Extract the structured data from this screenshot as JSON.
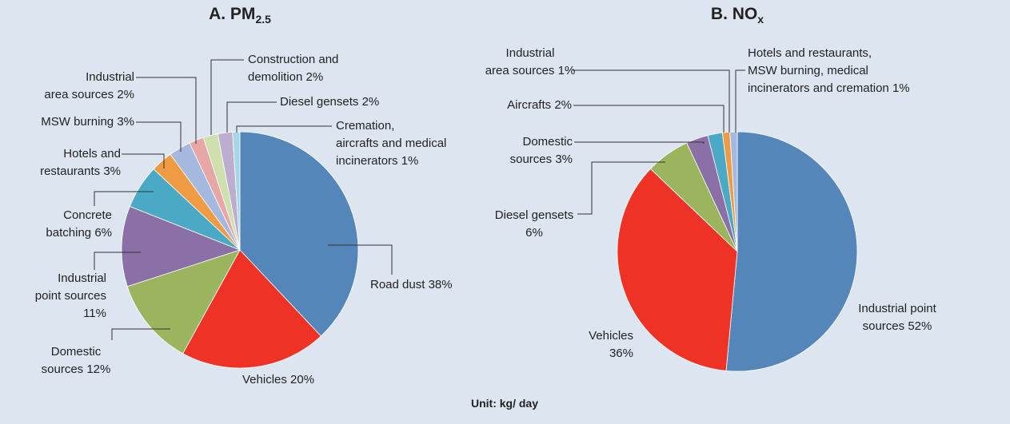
{
  "chart_data": [
    {
      "type": "pie",
      "title": "A. PM",
      "title_subscript": "2.5",
      "categories": [
        "Road dust",
        "Vehicles",
        "Domestic\nsources",
        "Industrial\npoint sources",
        "Concrete\nbatching",
        "Hotels and\nrestaurants",
        "MSW burning",
        "Industrial\narea sources",
        "Construction and\ndemolition",
        "Diesel gensets",
        "Cremation,\naircrafts and medical\nincinerators"
      ],
      "values": [
        38,
        20,
        12,
        11,
        6,
        3,
        3,
        2,
        2,
        2,
        1
      ],
      "value_labels": [
        "38%",
        "20%",
        "12%",
        "11%",
        "6%",
        "3%",
        "3%",
        "2%",
        "2%",
        "2%",
        "1%"
      ],
      "colors": [
        "#5586ba",
        "#ee3326",
        "#9bb45e",
        "#8a70a6",
        "#4aa9c4",
        "#ef9b43",
        "#a5b9df",
        "#e7a7a7",
        "#cfdfae",
        "#bdaecf",
        "#a9d6e6"
      ]
    },
    {
      "type": "pie",
      "title": "B. NO",
      "title_subscript": "x",
      "categories": [
        "Industrial point\nsources",
        "Vehicles",
        "Diesel gensets",
        "Domestic\nsources",
        "Aircrafts",
        "Industrial\narea sources",
        "Hotels and restaurants,\nMSW burning, medical\nincinerators and cremation"
      ],
      "values": [
        52,
        36,
        6,
        3,
        2,
        1,
        1
      ],
      "value_labels": [
        "52%",
        "36%",
        "6%",
        "3%",
        "2%",
        "1%",
        "1%"
      ],
      "colors": [
        "#5586ba",
        "#ee3326",
        "#9bb45e",
        "#8a70a6",
        "#4aa9c4",
        "#ef9b43",
        "#a5b9df"
      ]
    }
  ],
  "footer": "Unit: kg/ day"
}
